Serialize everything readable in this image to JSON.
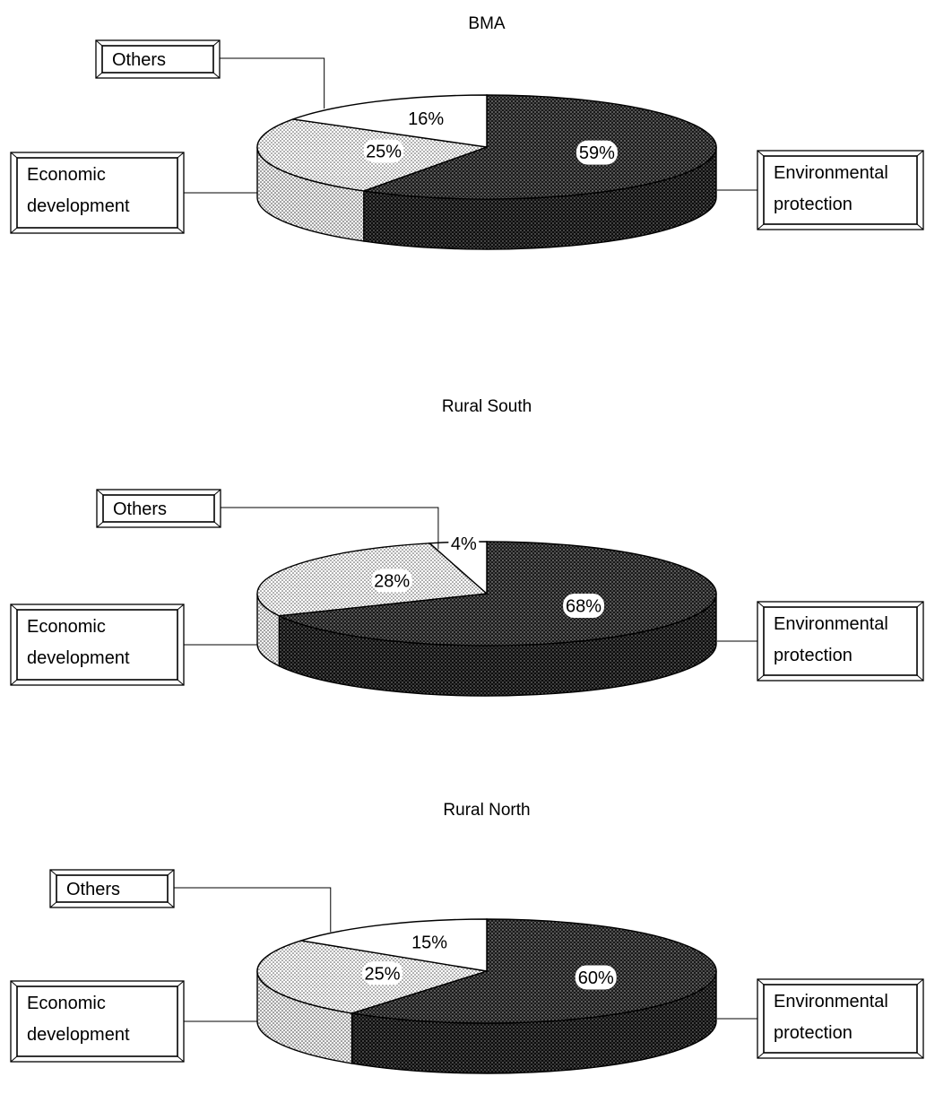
{
  "chart_data": [
    {
      "type": "pie",
      "title": "BMA",
      "categories": [
        "Environmental protection",
        "Economic development",
        "Others"
      ],
      "values": [
        59,
        25,
        16
      ],
      "value_labels": [
        "59%",
        "25%",
        "16%"
      ]
    },
    {
      "type": "pie",
      "title": "Rural South",
      "categories": [
        "Environmental protection",
        "Economic development",
        "Others"
      ],
      "values": [
        68,
        28,
        4
      ],
      "value_labels": [
        "68%",
        "28%",
        "4%"
      ]
    },
    {
      "type": "pie",
      "title": "Rural North",
      "categories": [
        "Environmental protection",
        "Economic development",
        "Others"
      ],
      "values": [
        60,
        25,
        15
      ],
      "value_labels": [
        "60%",
        "25%",
        "15%"
      ]
    }
  ],
  "legend": {
    "others": "Others",
    "economic_line1": "Economic",
    "economic_line2": "development",
    "environmental_line1": "Environmental",
    "environmental_line2": "protection"
  }
}
